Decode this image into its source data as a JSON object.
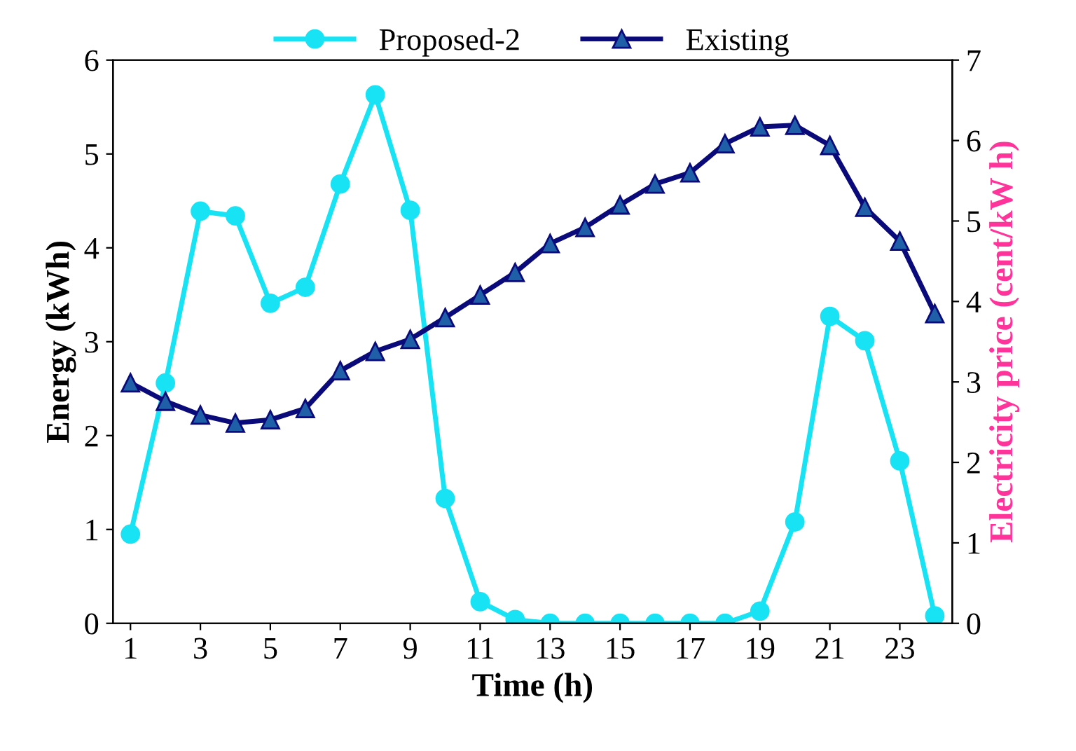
{
  "chart_data": {
    "type": "line",
    "xlabel": "Time (h)",
    "ylabel": "Energy (kWh)",
    "y2label": "Electricity price (cent/kW h)",
    "x": [
      1,
      2,
      3,
      4,
      5,
      6,
      7,
      8,
      9,
      10,
      11,
      12,
      13,
      14,
      15,
      16,
      17,
      18,
      19,
      20,
      21,
      22,
      23,
      24
    ],
    "series": [
      {
        "name": "Proposed-2",
        "color": "#17e3f5",
        "marker": "circle",
        "values": [
          0.95,
          2.56,
          4.39,
          4.34,
          3.41,
          3.58,
          4.68,
          5.63,
          4.4,
          1.33,
          0.23,
          0.04,
          0,
          0,
          0,
          0,
          0,
          0,
          0.13,
          1.08,
          3.27,
          3.01,
          1.73,
          0.08
        ]
      },
      {
        "name": "Existing",
        "color": "#0a0a7a",
        "marker": "triangle",
        "axis": "y2",
        "values": [
          2.99,
          2.76,
          2.59,
          2.49,
          2.53,
          2.67,
          3.14,
          3.38,
          3.53,
          3.8,
          4.08,
          4.36,
          4.72,
          4.92,
          5.2,
          5.46,
          5.6,
          5.96,
          6.17,
          6.19,
          5.94,
          5.17,
          4.75,
          3.85
        ]
      }
    ],
    "xlim": [
      0.5,
      24.5
    ],
    "xticks": [
      1,
      3,
      5,
      7,
      9,
      11,
      13,
      15,
      17,
      19,
      21,
      23
    ],
    "ylim": [
      0,
      6
    ],
    "yticks": [
      0,
      1,
      2,
      3,
      4,
      5,
      6
    ],
    "y2lim": [
      0,
      7
    ],
    "y2ticks": [
      0,
      1,
      2,
      3,
      4,
      5,
      6,
      7
    ],
    "grid": false,
    "legend": "top",
    "line_style": "solid"
  }
}
